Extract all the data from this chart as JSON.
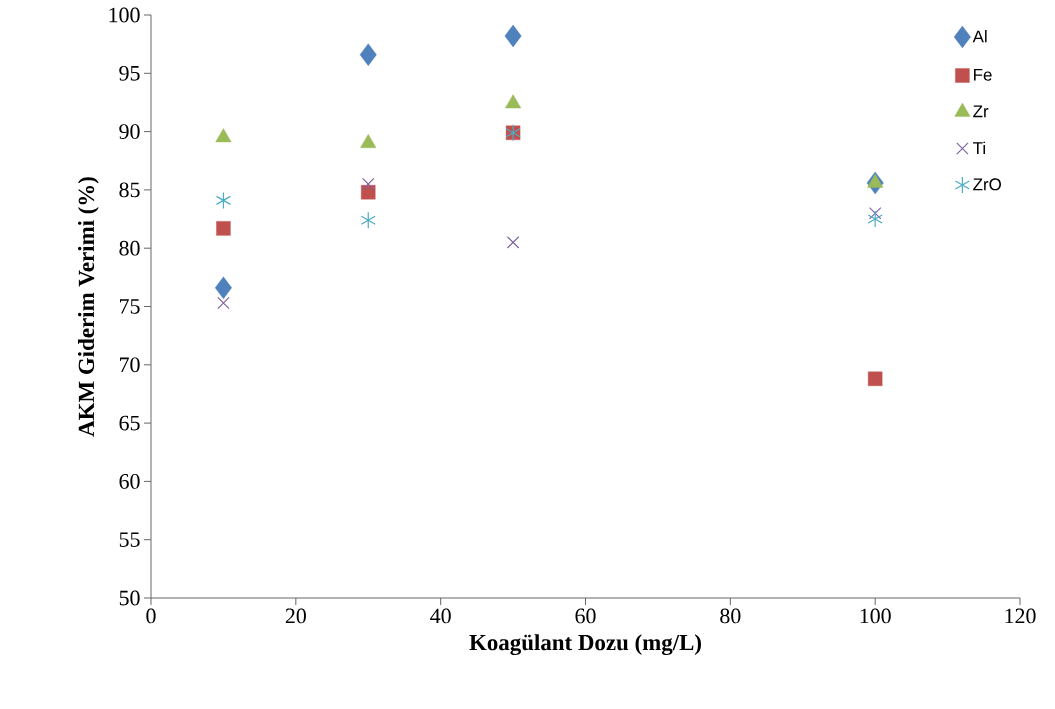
{
  "chart_data": {
    "type": "scatter",
    "xlabel": "Koagülant Dozu (mg/L)",
    "ylabel": "AKM Giderim Verimi (%)",
    "x": [
      10,
      30,
      50,
      100
    ],
    "xlim": [
      0,
      120
    ],
    "xticks": [
      0,
      20,
      40,
      60,
      80,
      100,
      120
    ],
    "ylim": [
      50,
      100
    ],
    "yticks": [
      50,
      55,
      60,
      65,
      70,
      75,
      80,
      85,
      90,
      95,
      100
    ],
    "legend": "top right",
    "grid": false,
    "series": [
      {
        "name": "Al",
        "color": "#4f81bd",
        "marker": "diamond",
        "values": [
          76.6,
          96.6,
          98.2,
          85.6
        ]
      },
      {
        "name": "Fe",
        "color": "#c0504d",
        "marker": "square",
        "values": [
          81.7,
          84.8,
          89.9,
          68.8
        ]
      },
      {
        "name": "Zr",
        "color": "#9bbb59",
        "marker": "triangle",
        "values": [
          89.5,
          89.0,
          92.4,
          85.6
        ]
      },
      {
        "name": "Ti",
        "color": "#8064a2",
        "marker": "cross",
        "values": [
          75.3,
          85.5,
          80.5,
          83.0
        ]
      },
      {
        "name": "ZrO",
        "color": "#4bacc6",
        "values": [
          84.1,
          82.4,
          89.9,
          82.5
        ]
      }
    ]
  }
}
